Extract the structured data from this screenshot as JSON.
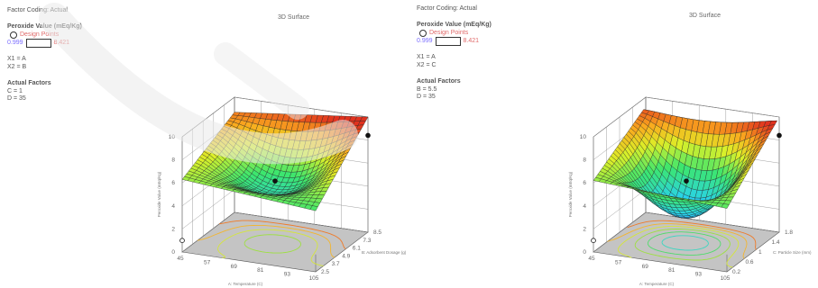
{
  "panels": [
    {
      "factor_coding": "Factor Coding: Actual",
      "response_title": "Peroxide Value (mEq/Kg)",
      "design_points_label": "Design Points",
      "range_low": "0.999",
      "range_high": "8.421",
      "x1": "X1 = A",
      "x2": "X2 = B",
      "actual_factors_title": "Actual Factors",
      "actual_factors": [
        "C = 1",
        "D = 35"
      ],
      "plot_title": "3D Surface"
    },
    {
      "factor_coding": "Factor Coding: Actual",
      "response_title": "Peroxide Value (mEq/Kg)",
      "design_points_label": "Design Points",
      "range_low": "0.999",
      "range_high": "8.421",
      "x1": "X1 = A",
      "x2": "X2 = C",
      "actual_factors_title": "Actual Factors",
      "actual_factors": [
        "B = 5.5",
        "D = 35"
      ],
      "plot_title": "3D Surface"
    }
  ],
  "chart_data": [
    {
      "type": "surface3d",
      "title": "3D Surface",
      "zlabel": "Peroxide Value (mEq/Kg)",
      "xlabel": "A: Temperature (C)",
      "ylabel": "B: Adsorbent Dosage (g)",
      "x_ticks": [
        "45",
        "57",
        "69",
        "81",
        "93",
        "105"
      ],
      "y_ticks": [
        "2.5",
        "3.7",
        "4.9",
        "6.1",
        "7.3",
        "8.5"
      ],
      "z_ticks": [
        "0",
        "2",
        "4",
        "6",
        "8",
        "10"
      ],
      "xlim": [
        45,
        105
      ],
      "ylim": [
        2.5,
        8.5
      ],
      "zlim": [
        0,
        10
      ],
      "surface_corners": {
        "x45_ylow": 6.3,
        "x105_ylow": 5.3,
        "x45_yhigh": 8.7,
        "x105_yhigh": 10.0,
        "center_min": 3.6
      },
      "design_points": [
        {
          "x": 75,
          "y": 5.5,
          "z": 5.3
        },
        {
          "x": 105,
          "y": 8.5,
          "z": 8.4
        },
        {
          "x": 45,
          "y": 2.5,
          "z": 1.0
        }
      ]
    },
    {
      "type": "surface3d",
      "title": "3D Surface",
      "zlabel": "Peroxide Value (mEq/Kg)",
      "xlabel": "A: Temperature (C)",
      "ylabel": "C: Particle Size (mm)",
      "x_ticks": [
        "45",
        "57",
        "69",
        "81",
        "93",
        "105"
      ],
      "y_ticks": [
        "0.2",
        "0.6",
        "1",
        "1.4",
        "1.8"
      ],
      "z_ticks": [
        "0",
        "2",
        "4",
        "6",
        "8",
        "10"
      ],
      "xlim": [
        45,
        105
      ],
      "ylim": [
        0.2,
        1.8
      ],
      "zlim": [
        0,
        10
      ],
      "surface_corners": {
        "x45_ylow": 6.2,
        "x105_ylow": 5.5,
        "x45_yhigh": 9.2,
        "x105_yhigh": 10.0,
        "center_min": 1.0
      },
      "design_points": [
        {
          "x": 75,
          "y": 1.0,
          "z": 5.3
        },
        {
          "x": 105,
          "y": 1.8,
          "z": 8.4
        },
        {
          "x": 45,
          "y": 0.2,
          "z": 1.0
        }
      ]
    }
  ]
}
